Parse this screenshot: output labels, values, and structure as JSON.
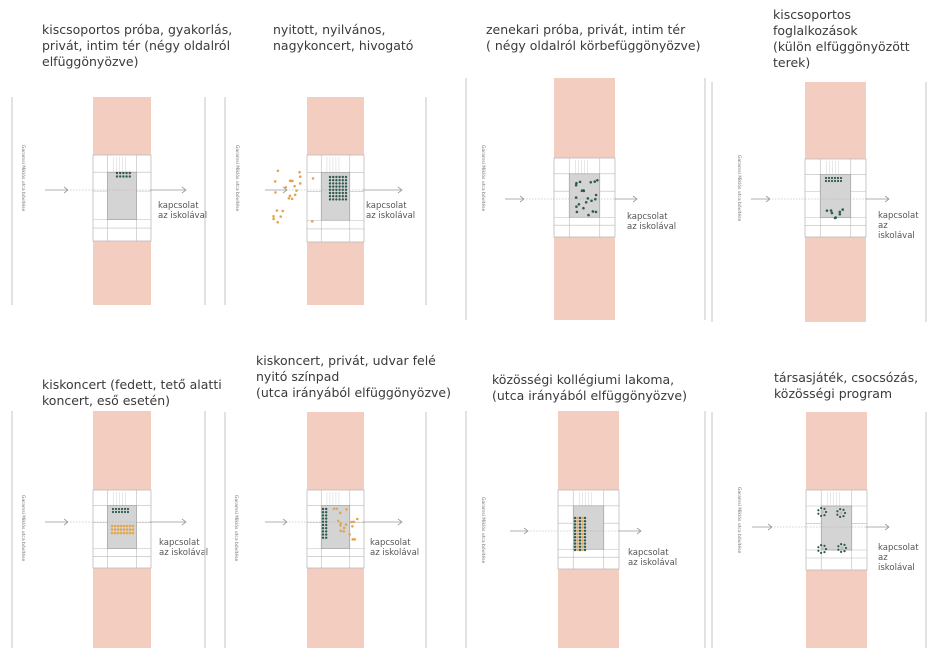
{
  "panels": [
    {
      "title": "kiscsoportos próba, gyakorlás,\nprivát, intim tér (négy oldalról\nelfüggönyözve)",
      "street": "Garamsi Miklós utca bővítése",
      "link": "kapcsolat\naz iskolával"
    },
    {
      "title": "nyitott, nyilvános,\nnagykoncert, hivogató",
      "street": "Garamsi Miklós utca bővítése",
      "link": "kapcsolat\naz iskolával"
    },
    {
      "title": "zenekari próba, privát, intim tér\n( négy oldalról körbefüggönyözve)",
      "street": "Garamsi Miklós utca bővítése",
      "link": "kapcsolat\naz iskolával"
    },
    {
      "title": "kiscsoportos\nfoglalkozások\n(külön elfüggönyözött\nterek)",
      "street": "Garamsi Miklós utca bővítése",
      "link": "kapcsolat\naz iskolával"
    },
    {
      "title": "kiskoncert (fedett, tető alatti\nkoncert, eső esetén)",
      "street": "Garamsi Miklós utca bővítése",
      "link": "kapcsolat\naz iskolával"
    },
    {
      "title": "kiskoncert, privát, udvar felé\nnyitó színpad\n(utca irányából elfüggönyözve)",
      "street": "Garamsi Miklós utca bővítése",
      "link": "kapcsolat\naz iskolával"
    },
    {
      "title": "közösségi kollégiumi lakoma,\n(utca irányából elfüggönyözve)",
      "street": "Garamsi Miklós utca bővítése",
      "link": "kapcsolat\naz iskolával"
    },
    {
      "title": "társasjáték, csocsózás,\nközösségi program",
      "street": "Garamsi Miklós utca bővítése",
      "link": "kapcsolat\naz iskolával"
    }
  ],
  "colors": {
    "building": "#f2cdc0",
    "courtyard": "#d4d4d4",
    "teal": "#2f5a50",
    "orange": "#e1a650",
    "line": "#bbbbbb"
  }
}
